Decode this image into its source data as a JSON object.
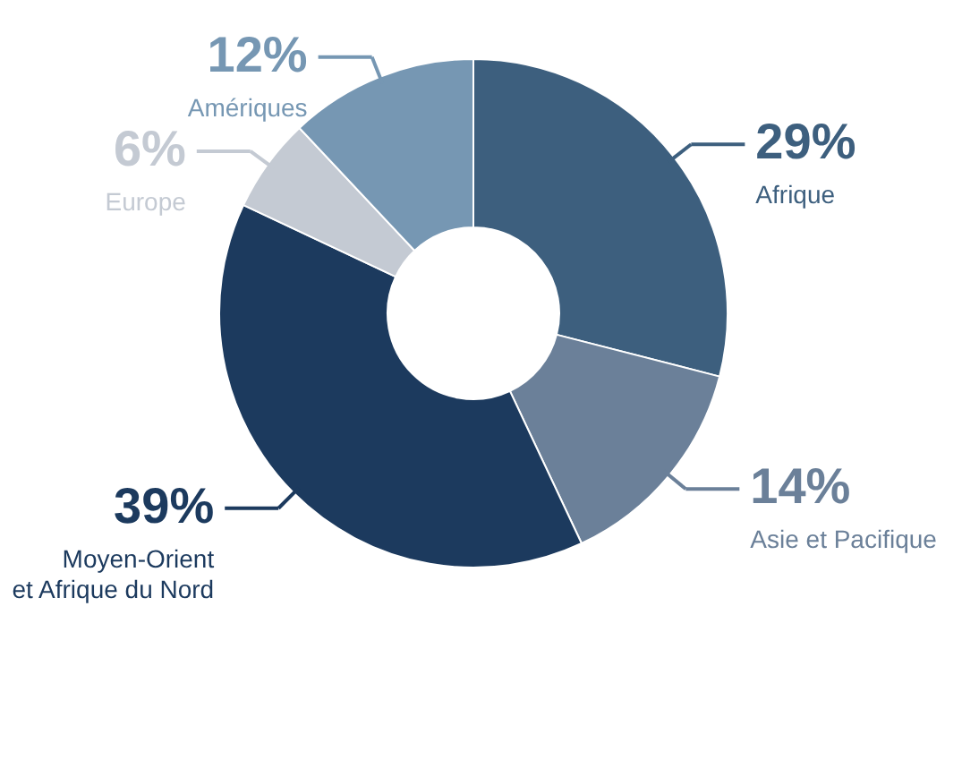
{
  "chart_data": {
    "type": "donut",
    "categories": [
      "Afrique",
      "Asie et Pacifique",
      "Moyen-Orient\net Afrique du Nord",
      "Europe",
      "Amériques"
    ],
    "values": [
      29,
      14,
      39,
      6,
      12
    ],
    "value_labels": [
      "29%",
      "14%",
      "39%",
      "6%",
      "12%"
    ],
    "colors": [
      "#3d5f7e",
      "#6b8099",
      "#1c3a5e",
      "#c4cad3",
      "#7697b3"
    ]
  }
}
